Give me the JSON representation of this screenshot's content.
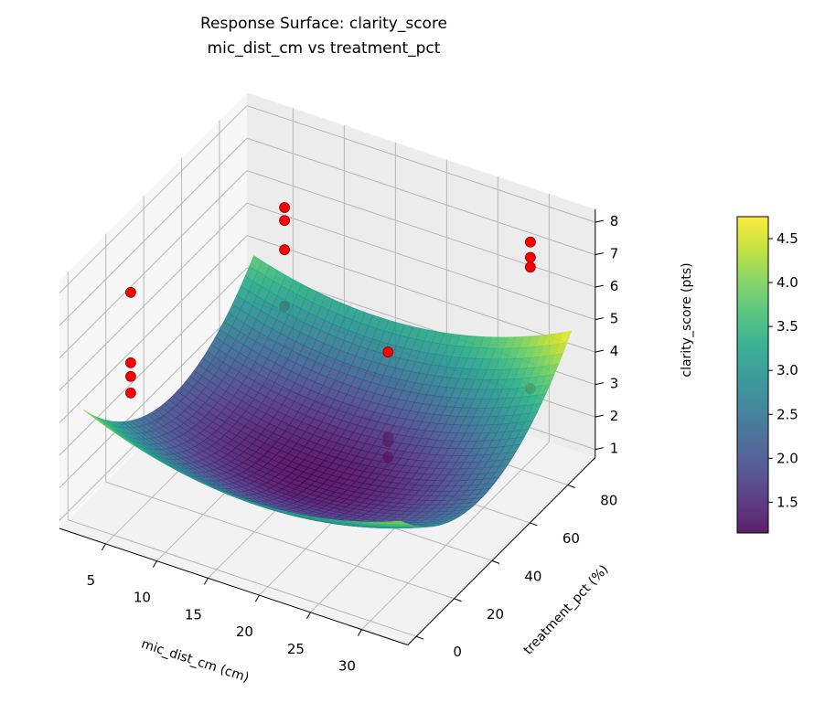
{
  "chart_data": {
    "type": "surface3d",
    "title": [
      "Response Surface: clarity_score",
      "mic_dist_cm vs treatment_pct"
    ],
    "xlabel": "mic_dist_cm (cm)",
    "ylabel": "treatment_pct (%)",
    "zlabel": "clarity_score (pts)",
    "xlim": [
      0.5,
      34.5
    ],
    "ylim": [
      -4.5,
      94.5
    ],
    "zlim": [
      0.75,
      8.4
    ],
    "xticks": [
      5,
      10,
      15,
      20,
      25,
      30
    ],
    "yticks": [
      0,
      20,
      40,
      60,
      80
    ],
    "zticks": [
      1,
      2,
      3,
      4,
      5,
      6,
      7,
      8
    ],
    "grid": true,
    "surface": {
      "colormap": "viridis",
      "x_range": [
        2,
        33
      ],
      "y_range": [
        0,
        90
      ],
      "model": "z = 1.15 + 0.00426*(x-16)^2 + 0.00102*(y-45)^2 + 0.000397*(x-16)*(y-45)",
      "coef": {
        "z0": 1.15,
        "xc": 16,
        "yc": 45,
        "a": 0.00426,
        "b": 0.00102,
        "c": 0.000397
      }
    },
    "scatter": {
      "color": "#ff0000",
      "edgecolor": "#8b0000",
      "points": [
        {
          "x": 2,
          "y": 25,
          "z": 6.46
        },
        {
          "x": 2,
          "y": 25,
          "z": 4.29
        },
        {
          "x": 2,
          "y": 25,
          "z": 3.87
        },
        {
          "x": 2,
          "y": 25,
          "z": 3.36
        },
        {
          "x": 5,
          "y": 90,
          "z": 5.6
        },
        {
          "x": 5,
          "y": 90,
          "z": 5.2
        },
        {
          "x": 5,
          "y": 90,
          "z": 4.3
        },
        {
          "x": 5,
          "y": 90,
          "z": 2.56
        },
        {
          "x": 22.5,
          "y": 50,
          "z": 5.33
        },
        {
          "x": 22.5,
          "y": 50,
          "z": 2.71
        },
        {
          "x": 22.5,
          "y": 50,
          "z": 2.57
        },
        {
          "x": 22.5,
          "y": 50,
          "z": 2.09
        },
        {
          "x": 29,
          "y": 90,
          "z": 7.07
        },
        {
          "x": 29,
          "y": 90,
          "z": 6.6
        },
        {
          "x": 29,
          "y": 90,
          "z": 6.3
        },
        {
          "x": 29,
          "y": 90,
          "z": 2.56
        }
      ]
    },
    "colorbar": {
      "range": [
        1.15,
        4.75
      ],
      "ticks": [
        1.5,
        2.0,
        2.5,
        3.0,
        3.5,
        4.0,
        4.5
      ],
      "tick_labels": [
        "1.5",
        "2.0",
        "2.5",
        "3.0",
        "3.5",
        "4.0",
        "4.5"
      ]
    }
  }
}
